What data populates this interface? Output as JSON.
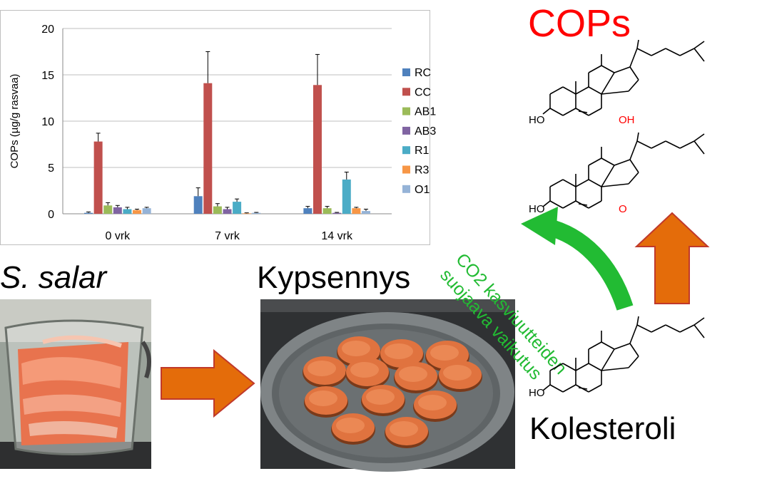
{
  "labels": {
    "species": "S. salar",
    "cooking": "Kypsennys",
    "cholesterol": "Kolesteroli",
    "cops_title": "COPs",
    "protective_line1": "CO2 kasviuutteiden",
    "protective_line2": "suojaava vaikutus"
  },
  "molecules": {
    "ho_label": "HO",
    "oh_label": "OH",
    "o_label": "O"
  },
  "colors": {
    "RC": "#4f81bd",
    "CC": "#c0504d",
    "AB1": "#9bbb59",
    "AB3": "#8064a2",
    "R1": "#4bacc6",
    "R3": "#f79646",
    "O1": "#95b3d7",
    "orange_arrow": "#e46c0a",
    "green_arrow": "#22bb33",
    "red_text": "#ff0000"
  },
  "chart_data": {
    "type": "bar",
    "categories": [
      "0 vrk",
      "7 vrk",
      "14 vrk"
    ],
    "ylabel": "COPs (µg/g rasvaa)",
    "ylim": [
      0,
      20
    ],
    "yticks": [
      "0",
      "5",
      "10",
      "15",
      "20"
    ],
    "grid": true,
    "legend": "right",
    "series": [
      {
        "name": "RC",
        "values": [
          0.1,
          1.9,
          0.6
        ],
        "errors": [
          0.1,
          0.9,
          0.2
        ]
      },
      {
        "name": "CC",
        "values": [
          7.8,
          14.1,
          13.9
        ],
        "errors": [
          0.9,
          3.4,
          3.3
        ]
      },
      {
        "name": "AB1",
        "values": [
          0.9,
          0.8,
          0.6
        ],
        "errors": [
          0.3,
          0.3,
          0.2
        ]
      },
      {
        "name": "AB3",
        "values": [
          0.7,
          0.5,
          0.1
        ],
        "errors": [
          0.2,
          0.2,
          0.05
        ]
      },
      {
        "name": "R1",
        "values": [
          0.5,
          1.3,
          3.7
        ],
        "errors": [
          0.2,
          0.3,
          0.8
        ]
      },
      {
        "name": "R3",
        "values": [
          0.4,
          0.05,
          0.6
        ],
        "errors": [
          0.1,
          0.05,
          0.1
        ]
      },
      {
        "name": "O1",
        "values": [
          0.6,
          0.1,
          0.3
        ],
        "errors": [
          0.1,
          0.05,
          0.2
        ]
      }
    ]
  }
}
